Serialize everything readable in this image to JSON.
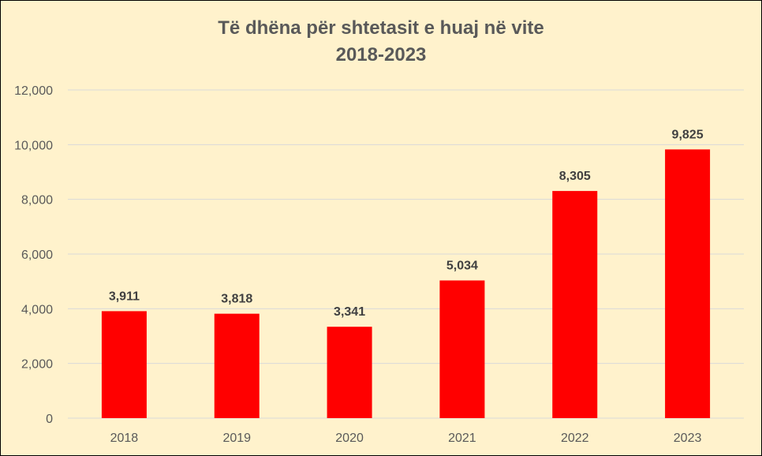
{
  "chart_data": {
    "type": "bar",
    "title_line1": "Të dhëna për shtetasit e huaj në vite",
    "title_line2": "2018-2023",
    "categories": [
      "2018",
      "2019",
      "2020",
      "2021",
      "2022",
      "2023"
    ],
    "values": [
      3911,
      3818,
      3341,
      5034,
      8305,
      9825
    ],
    "data_labels": [
      "3,911",
      "3,818",
      "3,341",
      "5,034",
      "8,305",
      "9,825"
    ],
    "y_ticks": [
      0,
      2000,
      4000,
      6000,
      8000,
      10000,
      12000
    ],
    "y_tick_labels": [
      "0",
      "2,000",
      "4,000",
      "6,000",
      "8,000",
      "10,000",
      "12,000"
    ],
    "ylim": [
      0,
      12000
    ],
    "grid": true,
    "legend": "none",
    "bar_color": "#ff0000",
    "background_color": "#fff2cc"
  }
}
